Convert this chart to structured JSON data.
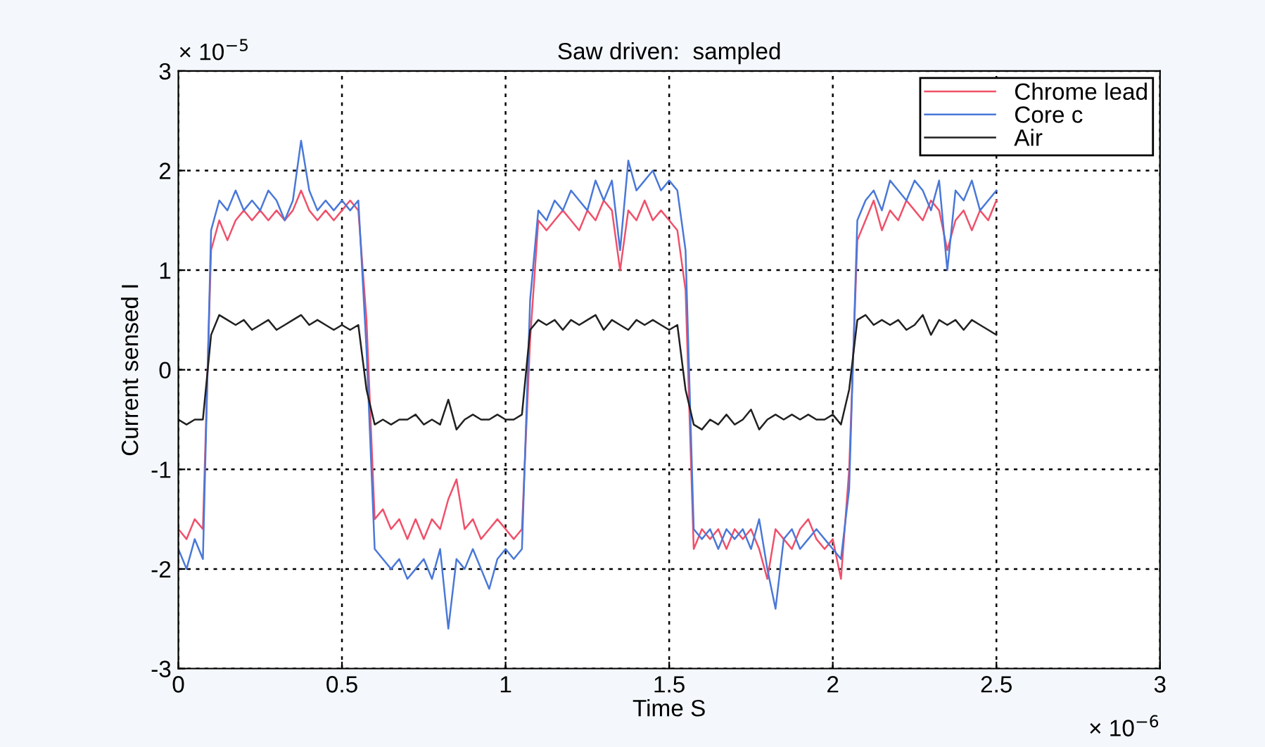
{
  "chart_data": {
    "type": "line",
    "title": "Saw driven:  sampled",
    "xlabel": "Time S",
    "ylabel": "Current sensed I",
    "annotations": [
      "× 10$^{−5}$",
      "× 10$^{−6}$"
    ],
    "x": [
      0,
      0.025,
      0.05,
      0.075,
      0.1,
      0.125,
      0.15,
      0.175,
      0.2,
      0.225,
      0.25,
      0.275,
      0.3,
      0.325,
      0.35,
      0.375,
      0.4,
      0.425,
      0.45,
      0.475,
      0.5,
      0.525,
      0.55,
      0.575,
      0.6,
      0.625,
      0.65,
      0.675,
      0.7,
      0.725,
      0.75,
      0.775,
      0.8,
      0.825,
      0.85,
      0.875,
      0.9,
      0.925,
      0.95,
      0.975,
      1.0,
      1.025,
      1.05,
      1.075,
      1.1,
      1.125,
      1.15,
      1.175,
      1.2,
      1.225,
      1.25,
      1.275,
      1.3,
      1.325,
      1.35,
      1.375,
      1.4,
      1.425,
      1.45,
      1.475,
      1.5,
      1.525,
      1.55,
      1.575,
      1.6,
      1.625,
      1.65,
      1.675,
      1.7,
      1.725,
      1.75,
      1.775,
      1.8,
      1.825,
      1.85,
      1.875,
      1.9,
      1.925,
      1.95,
      1.975,
      2.0,
      2.025,
      2.05,
      2.075,
      2.1,
      2.125,
      2.15,
      2.175,
      2.2,
      2.225,
      2.25,
      2.275,
      2.3,
      2.325,
      2.35,
      2.375,
      2.4,
      2.425,
      2.45,
      2.475,
      2.5
    ],
    "series": [
      {
        "name": "Chrome lead",
        "color": "#f0506a",
        "values": [
          -1.6,
          -1.7,
          -1.5,
          -1.6,
          1.2,
          1.5,
          1.3,
          1.5,
          1.6,
          1.5,
          1.6,
          1.5,
          1.6,
          1.5,
          1.6,
          1.8,
          1.6,
          1.5,
          1.6,
          1.5,
          1.6,
          1.7,
          1.6,
          0.5,
          -1.5,
          -1.4,
          -1.6,
          -1.5,
          -1.7,
          -1.5,
          -1.7,
          -1.5,
          -1.6,
          -1.3,
          -1.1,
          -1.6,
          -1.5,
          -1.7,
          -1.6,
          -1.5,
          -1.6,
          -1.7,
          -1.6,
          0.3,
          1.5,
          1.4,
          1.5,
          1.6,
          1.5,
          1.4,
          1.6,
          1.5,
          1.7,
          1.6,
          1.0,
          1.6,
          1.5,
          1.7,
          1.5,
          1.6,
          1.5,
          1.4,
          0.8,
          -1.8,
          -1.6,
          -1.7,
          -1.6,
          -1.8,
          -1.6,
          -1.7,
          -1.6,
          -1.8,
          -2.1,
          -1.6,
          -1.7,
          -1.8,
          -1.6,
          -1.5,
          -1.7,
          -1.8,
          -1.7,
          -2.1,
          -1.0,
          1.3,
          1.5,
          1.7,
          1.4,
          1.6,
          1.5,
          1.7,
          1.6,
          1.5,
          1.7,
          1.6,
          1.2,
          1.5,
          1.6,
          1.4,
          1.6,
          1.5,
          1.7
        ]
      },
      {
        "name": "Core c",
        "color": "#4a78d8",
        "values": [
          -1.8,
          -2.0,
          -1.7,
          -1.9,
          1.4,
          1.7,
          1.6,
          1.8,
          1.6,
          1.7,
          1.6,
          1.8,
          1.7,
          1.5,
          1.7,
          2.3,
          1.8,
          1.6,
          1.7,
          1.6,
          1.7,
          1.6,
          1.7,
          0.2,
          -1.8,
          -1.9,
          -2.0,
          -1.9,
          -2.1,
          -2.0,
          -1.9,
          -2.1,
          -1.8,
          -2.6,
          -1.9,
          -2.0,
          -1.8,
          -2.0,
          -2.2,
          -1.9,
          -1.8,
          -1.9,
          -1.8,
          0.7,
          1.6,
          1.5,
          1.7,
          1.6,
          1.8,
          1.7,
          1.6,
          1.9,
          1.7,
          1.9,
          1.2,
          2.1,
          1.8,
          1.9,
          2.0,
          1.8,
          1.9,
          1.8,
          1.2,
          -1.6,
          -1.7,
          -1.6,
          -1.8,
          -1.6,
          -1.7,
          -1.6,
          -1.8,
          -1.5,
          -2.0,
          -2.4,
          -1.7,
          -1.6,
          -1.8,
          -1.7,
          -1.6,
          -1.7,
          -1.8,
          -1.9,
          -1.2,
          1.5,
          1.7,
          1.8,
          1.6,
          1.9,
          1.8,
          1.7,
          1.9,
          1.8,
          1.6,
          1.9,
          1.0,
          1.8,
          1.7,
          1.9,
          1.6,
          1.7,
          1.8
        ]
      },
      {
        "name": "Air",
        "color": "#202020",
        "values": [
          -0.5,
          -0.55,
          -0.5,
          -0.5,
          0.35,
          0.55,
          0.5,
          0.45,
          0.5,
          0.4,
          0.45,
          0.5,
          0.4,
          0.45,
          0.5,
          0.55,
          0.45,
          0.5,
          0.45,
          0.4,
          0.45,
          0.4,
          0.45,
          -0.2,
          -0.55,
          -0.5,
          -0.55,
          -0.5,
          -0.5,
          -0.45,
          -0.55,
          -0.5,
          -0.55,
          -0.3,
          -0.6,
          -0.5,
          -0.45,
          -0.5,
          -0.5,
          -0.45,
          -0.5,
          -0.5,
          -0.45,
          0.4,
          0.5,
          0.45,
          0.5,
          0.4,
          0.5,
          0.45,
          0.5,
          0.55,
          0.4,
          0.5,
          0.45,
          0.4,
          0.5,
          0.45,
          0.5,
          0.45,
          0.4,
          0.45,
          -0.2,
          -0.55,
          -0.6,
          -0.5,
          -0.55,
          -0.45,
          -0.55,
          -0.5,
          -0.4,
          -0.6,
          -0.5,
          -0.45,
          -0.5,
          -0.45,
          -0.5,
          -0.45,
          -0.5,
          -0.5,
          -0.45,
          -0.55,
          -0.2,
          0.5,
          0.55,
          0.45,
          0.5,
          0.45,
          0.5,
          0.4,
          0.45,
          0.55,
          0.35,
          0.5,
          0.45,
          0.5,
          0.4,
          0.5,
          0.45,
          0.4,
          0.35
        ]
      }
    ],
    "xlim": [
      0,
      3
    ],
    "xticks": [
      0,
      0.5,
      1,
      1.5,
      2,
      2.5,
      3
    ],
    "ylim": [
      -3,
      3
    ],
    "yticks": [
      -3,
      -2,
      -1,
      0,
      1,
      2,
      3
    ],
    "grid": true,
    "legend": "top right",
    "line_style": "solid"
  }
}
